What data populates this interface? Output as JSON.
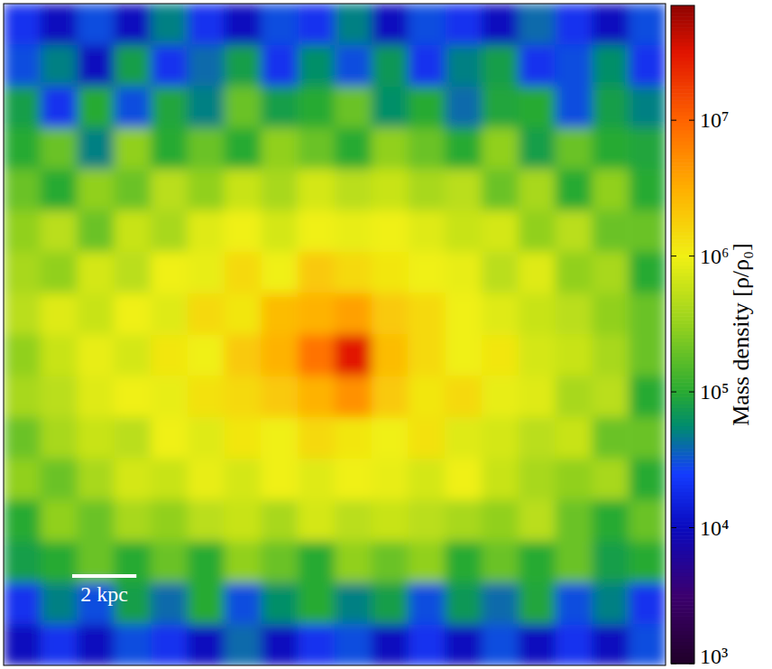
{
  "chart_data": {
    "type": "heatmap",
    "xlim": [
      -10.3,
      10.3
    ],
    "ylim": [
      -10.3,
      10.3
    ],
    "tick_labels": false,
    "scale_bar": {
      "label": "2 kpc",
      "length": 2
    },
    "colorbar": {
      "label": "Mass density [ρ/ρ₀]",
      "log": true,
      "range": [
        1000,
        70000000
      ],
      "ticks": [
        {
          "value": 1000,
          "label": "10³"
        },
        {
          "value": 10000,
          "label": "10⁴"
        },
        {
          "value": 100000,
          "label": "10⁵"
        },
        {
          "value": 1000000,
          "label": "10⁶"
        },
        {
          "value": 10000000,
          "label": "10⁷"
        }
      ]
    },
    "cells": [
      [
        20000.0,
        10000.0,
        30000.0,
        10000.0,
        50000.0,
        20000.0,
        10000.0,
        30000.0,
        20000.0,
        50000.0,
        10000.0,
        30000.0,
        20000.0,
        10000.0,
        40000.0,
        20000.0,
        10000.0,
        30000.0
      ],
      [
        30000.0,
        50000.0,
        10000.0,
        80000.0,
        20000.0,
        40000.0,
        80000.0,
        20000.0,
        60000.0,
        30000.0,
        70000.0,
        20000.0,
        50000.0,
        80000.0,
        20000.0,
        30000.0,
        60000.0,
        20000.0
      ],
      [
        80000.0,
        20000.0,
        100000.0,
        30000.0,
        90000.0,
        50000.0,
        200000.0,
        80000.0,
        100000.0,
        200000.0,
        60000.0,
        100000.0,
        40000.0,
        90000.0,
        100000.0,
        30000.0,
        80000.0,
        50000.0
      ],
      [
        100000.0,
        200000.0,
        50000.0,
        300000.0,
        100000.0,
        200000.0,
        100000.0,
        300000.0,
        200000.0,
        100000.0,
        300000.0,
        200000.0,
        100000.0,
        300000.0,
        80000.0,
        200000.0,
        100000.0,
        90000.0
      ],
      [
        200000.0,
        100000.0,
        300000.0,
        200000.0,
        500000.0,
        300000.0,
        600000.0,
        400000.0,
        700000.0,
        500000.0,
        600000.0,
        400000.0,
        500000.0,
        200000.0,
        400000.0,
        100000.0,
        300000.0,
        100000.0
      ],
      [
        300000.0,
        500000.0,
        200000.0,
        600000.0,
        400000.0,
        800000.0,
        1000000.0,
        700000.0,
        1000000.0,
        900000.0,
        1000000.0,
        800000.0,
        600000.0,
        700000.0,
        300000.0,
        500000.0,
        200000.0,
        200000.0
      ],
      [
        400000.0,
        300000.0,
        700000.0,
        500000.0,
        1000000.0,
        900000.0,
        1500000.0,
        1000000.0,
        2000000.0,
        1500000.0,
        1200000.0,
        1000000.0,
        900000.0,
        500000.0,
        800000.0,
        300000.0,
        400000.0,
        100000.0
      ],
      [
        500000.0,
        800000.0,
        600000.0,
        1000000.0,
        800000.0,
        1500000.0,
        1200000.0,
        2500000.0,
        3000000.0,
        4000000.0,
        2000000.0,
        1500000.0,
        1000000.0,
        800000.0,
        600000.0,
        500000.0,
        300000.0,
        200000.0
      ],
      [
        300000.0,
        600000.0,
        900000.0,
        700000.0,
        1200000.0,
        1000000.0,
        2000000.0,
        3000000.0,
        8000000.0,
        30000000.0,
        2500000.0,
        1500000.0,
        1000000.0,
        1200000.0,
        700000.0,
        600000.0,
        400000.0,
        200000.0
      ],
      [
        400000.0,
        500000.0,
        800000.0,
        1000000.0,
        900000.0,
        1300000.0,
        1500000.0,
        2000000.0,
        3000000.0,
        5000000.0,
        2000000.0,
        1200000.0,
        1500000.0,
        900000.0,
        800000.0,
        400000.0,
        500000.0,
        100000.0
      ],
      [
        200000.0,
        400000.0,
        600000.0,
        500000.0,
        1000000.0,
        800000.0,
        1200000.0,
        1000000.0,
        1500000.0,
        1200000.0,
        1000000.0,
        1300000.0,
        800000.0,
        700000.0,
        500000.0,
        600000.0,
        200000.0,
        200000.0
      ],
      [
        300000.0,
        200000.0,
        400000.0,
        700000.0,
        600000.0,
        900000.0,
        700000.0,
        1000000.0,
        800000.0,
        1000000.0,
        900000.0,
        700000.0,
        1000000.0,
        600000.0,
        400000.0,
        300000.0,
        400000.0,
        100000.0
      ],
      [
        100000.0,
        300000.0,
        200000.0,
        400000.0,
        300000.0,
        500000.0,
        600000.0,
        400000.0,
        700000.0,
        500000.0,
        600000.0,
        500000.0,
        400000.0,
        300000.0,
        500000.0,
        200000.0,
        100000.0,
        200000.0
      ],
      [
        80000.0,
        100000.0,
        200000.0,
        100000.0,
        200000.0,
        100000.0,
        300000.0,
        200000.0,
        100000.0,
        300000.0,
        200000.0,
        300000.0,
        100000.0,
        200000.0,
        100000.0,
        200000.0,
        80000.0,
        100000.0
      ],
      [
        20000.0,
        50000.0,
        30000.0,
        80000.0,
        40000.0,
        100000.0,
        30000.0,
        60000.0,
        100000.0,
        50000.0,
        80000.0,
        30000.0,
        70000.0,
        40000.0,
        90000.0,
        30000.0,
        50000.0,
        20000.0
      ],
      [
        10000.0,
        20000.0,
        10000.0,
        30000.0,
        20000.0,
        10000.0,
        40000.0,
        10000.0,
        20000.0,
        30000.0,
        10000.0,
        20000.0,
        10000.0,
        30000.0,
        10000.0,
        20000.0,
        10000.0,
        30000.0
      ]
    ]
  }
}
